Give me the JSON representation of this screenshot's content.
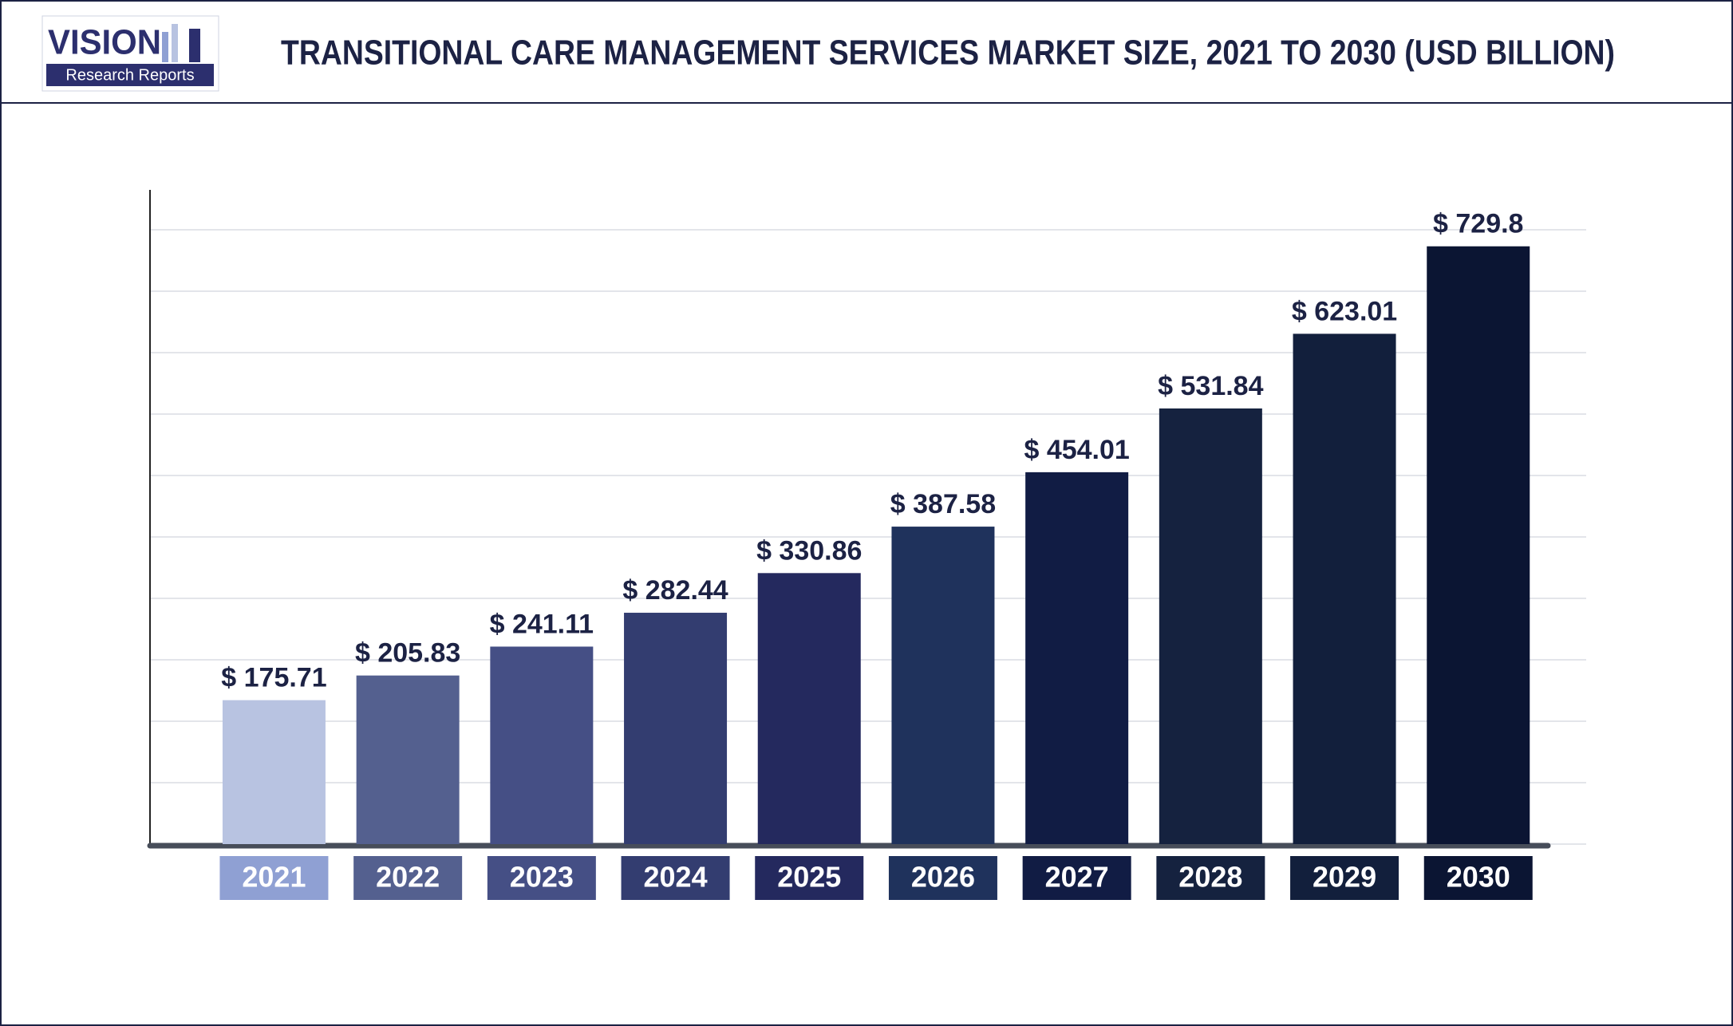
{
  "logo": {
    "name": "VISION",
    "tagline": "Research Reports"
  },
  "chart_data": {
    "type": "bar",
    "title": "TRANSITIONAL CARE MANAGEMENT SERVICES MARKET SIZE, 2021 TO 2030 (USD BILLION)",
    "categories": [
      "2021",
      "2022",
      "2023",
      "2024",
      "2025",
      "2026",
      "2027",
      "2028",
      "2029",
      "2030"
    ],
    "values": [
      175.71,
      205.83,
      241.11,
      282.44,
      330.86,
      387.58,
      454.01,
      531.84,
      623.01,
      729.8
    ],
    "value_labels": [
      "$ 175.71",
      "$ 205.83",
      "$ 241.11",
      "$ 282.44",
      "$ 330.86",
      "$ 387.58",
      "$ 454.01",
      "$ 531.84",
      "$ 623.01",
      "$ 729.8"
    ],
    "colors": [
      "#b8c3e1",
      "#54608f",
      "#454f85",
      "#333d70",
      "#24295e",
      "#1f325c",
      "#111c44",
      "#15223f",
      "#121f3c",
      "#0b1533"
    ],
    "category_label_colors": [
      "#8fa0d3",
      "#54608f",
      "#454f85",
      "#333d70",
      "#24295e",
      "#1f325c",
      "#111c44",
      "#15223f",
      "#121f3c",
      "#0b1533"
    ],
    "ylim": [
      0,
      750
    ],
    "yticks": [
      0,
      75,
      150,
      225,
      300,
      375,
      450,
      525,
      600,
      675,
      750
    ],
    "grid": true
  }
}
